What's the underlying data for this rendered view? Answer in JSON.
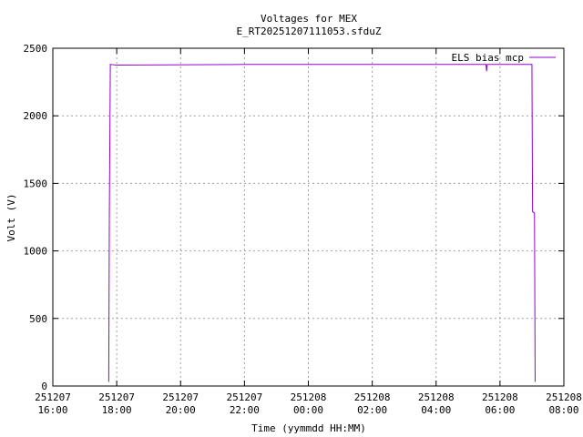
{
  "chart_data": {
    "type": "line",
    "title": "Voltages for MEX",
    "subtitle": "E_RT20251207111053.sfduZ",
    "x_label": "Time (yymmdd HH:MM)",
    "y_label": "Volt (V)",
    "series": [
      {
        "name": "ELS bias mcp",
        "color": "#9400d3",
        "x": [
          17.75,
          17.77,
          17.8,
          18.0,
          22.0,
          29.56,
          29.58,
          29.6,
          31.0,
          31.02,
          31.08,
          31.1
        ],
        "values": [
          30,
          1280,
          2380,
          2375,
          2380,
          2380,
          2330,
          2380,
          2380,
          1290,
          1280,
          30
        ]
      }
    ],
    "xlim": [
      16,
      32
    ],
    "ylim": [
      0,
      2500
    ],
    "xticks": [
      {
        "value": 16,
        "label": "251207\n16:00"
      },
      {
        "value": 18,
        "label": "251207\n18:00"
      },
      {
        "value": 20,
        "label": "251207\n20:00"
      },
      {
        "value": 22,
        "label": "251207\n22:00"
      },
      {
        "value": 24,
        "label": "251208\n00:00"
      },
      {
        "value": 26,
        "label": "251208\n02:00"
      },
      {
        "value": 28,
        "label": "251208\n04:00"
      },
      {
        "value": 30,
        "label": "251208\n06:00"
      },
      {
        "value": 32,
        "label": "251208\n08:00"
      }
    ],
    "yticks": [
      0,
      500,
      1000,
      1500,
      2000,
      2500
    ],
    "grid": true,
    "legend": "top-right"
  }
}
